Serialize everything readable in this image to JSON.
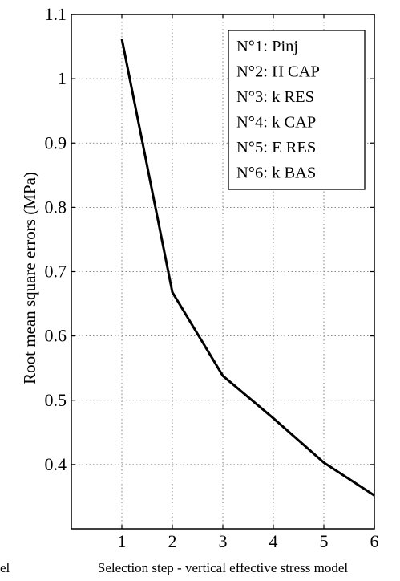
{
  "chart_data": {
    "type": "line",
    "title": "",
    "xlabel": "Selection step - vertical effective stress model",
    "xlabel_fragment": "el",
    "ylabel": "Root mean square errors (MPa)",
    "x": [
      1,
      2,
      3,
      4,
      5,
      6
    ],
    "series": [
      {
        "values": [
          1.062,
          0.668,
          0.538,
          0.472,
          0.403,
          0.352
        ],
        "color": "#000000"
      }
    ],
    "xlim": [
      0,
      6
    ],
    "ylim": [
      0.3,
      1.1
    ],
    "xticks": [
      "1",
      "2",
      "3",
      "4",
      "5",
      "6"
    ],
    "yticks": [
      "0.4",
      "0.5",
      "0.6",
      "0.7",
      "0.8",
      "0.9",
      "1",
      "1.1"
    ],
    "grid": true,
    "legend_position": "top-right",
    "legend_entries": [
      "N°1: Pinj",
      "N°2: H CAP",
      "N°3: k RES",
      "N°4: k CAP",
      "N°5: E RES",
      "N°6: k BAS"
    ]
  }
}
